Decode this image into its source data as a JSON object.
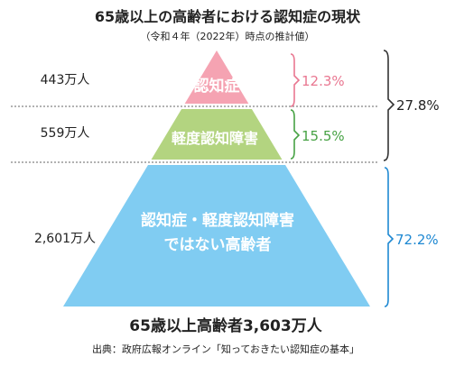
{
  "header": {
    "title": "65歳以上の高齢者における認知症の現状",
    "subtitle": "（令和４年（2022年）時点の推計値）"
  },
  "pyramid": {
    "tiers": [
      {
        "count_label": "443万人",
        "lines": [
          "認知症"
        ],
        "percent_label": "12.3%",
        "color": "#F5A3B2",
        "text_color": "#ffffff",
        "accent": "#E97791"
      },
      {
        "count_label": "559万人",
        "lines": [
          "軽度認知障害"
        ],
        "percent_label": "15.5%",
        "color": "#B3D480",
        "text_color": "#ffffff",
        "accent": "#47A244"
      },
      {
        "count_label": "2,601万人",
        "lines": [
          "認知症・軽度認知障害",
          "ではない高齢者"
        ],
        "percent_label": "72.2%",
        "color": "#80CCF2",
        "text_color": "#ffffff",
        "accent": "#1E88D2"
      }
    ],
    "combined_percent_label": "27.8%"
  },
  "footer": {
    "total_label": "65歳以上高齢者3,603万人",
    "source": "出典：政府広報オンライン「知っておきたい認知症の基本」"
  },
  "colors": {
    "divider": "#666666",
    "combined_brace": "#333333",
    "text": "#222222"
  }
}
